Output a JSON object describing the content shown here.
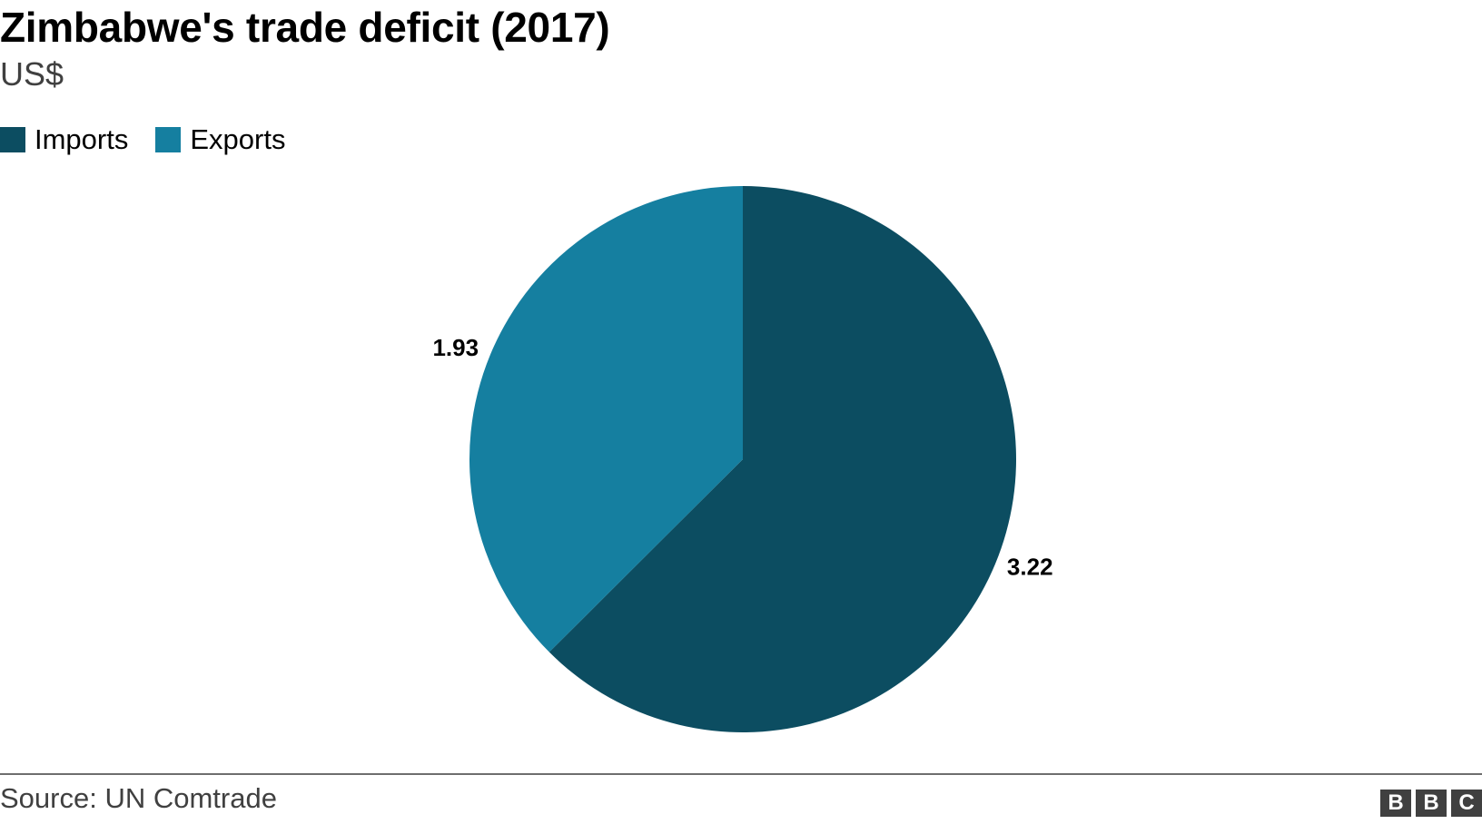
{
  "title": "Zimbabwe's trade deficit (2017)",
  "subtitle": "US$",
  "legend": [
    {
      "label": "Imports",
      "color": "#0c4d61"
    },
    {
      "label": "Exports",
      "color": "#157fa0"
    }
  ],
  "chart_data": {
    "type": "pie",
    "title": "Zimbabwe's trade deficit (2017)",
    "subtitle": "US$",
    "categories": [
      "Imports",
      "Exports"
    ],
    "values": [
      3.22,
      1.93
    ],
    "labels": [
      "3.22",
      "1.93"
    ],
    "colors": [
      "#0c4d61",
      "#157fa0"
    ],
    "start_angle": "12 o'clock, clockwise",
    "legend_position": "top-left"
  },
  "footer": {
    "source": "Source: UN Comtrade",
    "logo_letters": [
      "B",
      "B",
      "C"
    ]
  }
}
